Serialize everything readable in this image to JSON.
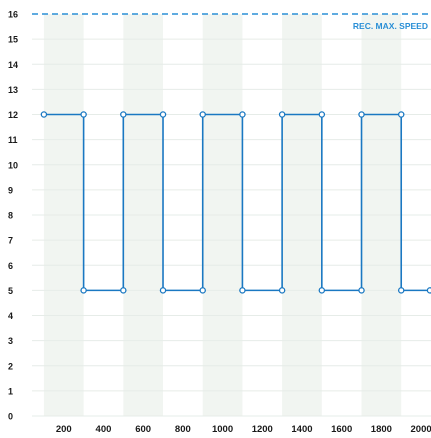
{
  "chart_data": {
    "type": "line",
    "title": "",
    "xlabel": "",
    "ylabel": "",
    "x_ticks": [
      "200",
      "400",
      "600",
      "800",
      "1000",
      "1200",
      "1400",
      "1600",
      "1800",
      "2000"
    ],
    "y_ticks": [
      "0",
      "1",
      "2",
      "3",
      "4",
      "5",
      "6",
      "7",
      "8",
      "9",
      "10",
      "11",
      "12",
      "13",
      "14",
      "15",
      "16"
    ],
    "xlim": [
      40,
      2050
    ],
    "ylim": [
      0,
      16
    ],
    "grid": true,
    "series": [
      {
        "points": [
          [
            100,
            12
          ],
          [
            300,
            12
          ],
          [
            300,
            5
          ],
          [
            500,
            5
          ],
          [
            500,
            12
          ],
          [
            700,
            12
          ],
          [
            700,
            5
          ],
          [
            900,
            5
          ],
          [
            900,
            12
          ],
          [
            1100,
            12
          ],
          [
            1100,
            5
          ],
          [
            1300,
            5
          ],
          [
            1300,
            12
          ],
          [
            1500,
            12
          ],
          [
            1500,
            5
          ],
          [
            1700,
            5
          ],
          [
            1700,
            12
          ],
          [
            1900,
            12
          ],
          [
            1900,
            5
          ],
          [
            2100,
            5
          ]
        ]
      }
    ],
    "reference_line": {
      "value": 16,
      "label": "REC. MAX. SPEED"
    },
    "colors": {
      "line": "#1a78c2",
      "reference": "#2a8fd6",
      "reference_label": "#2a8fd6",
      "band": "#f1f5f1",
      "grid": "#e6ece8",
      "tick_text": "#1a1a1a"
    }
  }
}
